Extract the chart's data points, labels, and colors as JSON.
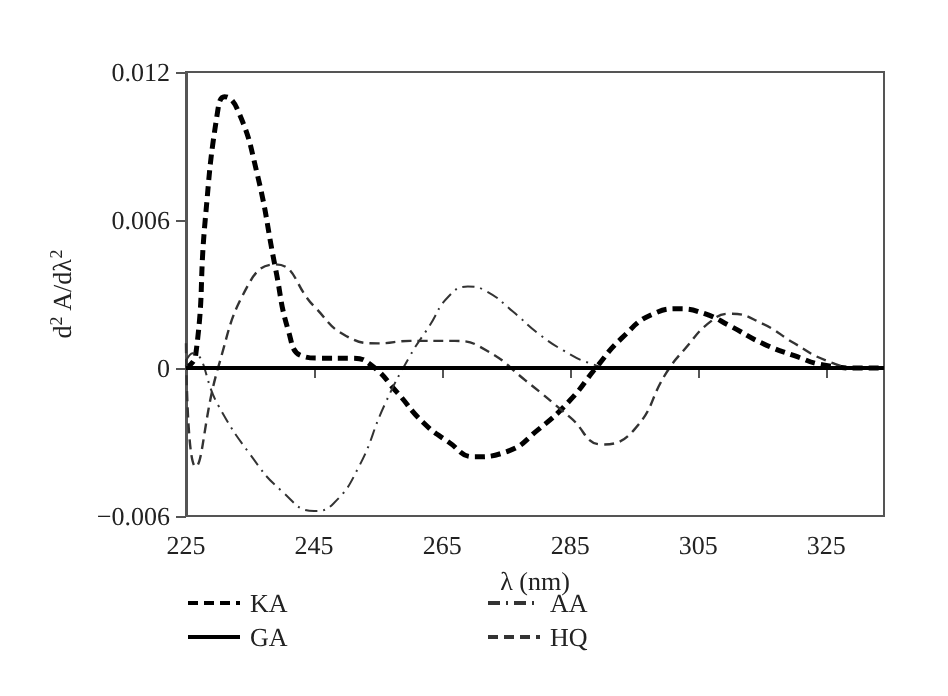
{
  "chart_data": {
    "type": "line",
    "xlabel": "λ (nm)",
    "ylabel": "d$^{2}$ A/dλ$^{2}$",
    "xlim": [
      225,
      334
    ],
    "xticks": [
      225,
      245,
      265,
      285,
      305,
      325
    ],
    "ylim": [
      -0.006,
      0.012
    ],
    "yticks": [
      -0.006,
      0,
      0.006,
      0.012
    ],
    "grid": false,
    "legend": "bottom",
    "marker": "none",
    "series": [
      {
        "name": "KA",
        "color": "#000000",
        "line_style": "dashed",
        "x": [
          225,
          226.5,
          228,
          230,
          231,
          233,
          236,
          239,
          241,
          243,
          246,
          251,
          254,
          258,
          262,
          266,
          270,
          275,
          280,
          285,
          289,
          293,
          298,
          302,
          306,
          310,
          315,
          320,
          325,
          330,
          334
        ],
        "values": [
          0,
          0.0005,
          0.006,
          0.0105,
          0.011,
          0.0105,
          0.008,
          0.004,
          0.0015,
          0.0005,
          0.0004,
          0.0004,
          0.0001,
          -0.001,
          -0.0022,
          -0.003,
          -0.0036,
          -0.0034,
          -0.0025,
          -0.0013,
          0,
          0.0012,
          0.0022,
          0.0024,
          0.0022,
          0.0017,
          0.001,
          0.0005,
          0.0001,
          0,
          0
        ]
      },
      {
        "name": "GA",
        "color": "#000000",
        "line_style": "solid",
        "x": [
          225,
          334
        ],
        "values": [
          0,
          0
        ]
      },
      {
        "name": "AA",
        "color": "#333333",
        "line_style": "dashdot",
        "x": [
          225,
          226,
          230,
          235,
          240,
          245,
          248,
          252,
          256,
          260,
          263,
          266,
          269,
          272,
          276,
          280,
          284,
          288,
          292,
          300,
          310,
          334
        ],
        "values": [
          0.0003,
          0.0006,
          -0.0015,
          -0.0035,
          -0.005,
          -0.0058,
          -0.0055,
          -0.004,
          -0.0015,
          0.0005,
          0.0017,
          0.0029,
          0.0033,
          0.0031,
          0.0023,
          0.0014,
          0.0007,
          0.0002,
          0,
          0,
          0,
          0
        ]
      },
      {
        "name": "HQ",
        "color": "#333333",
        "line_style": "dashed",
        "x": [
          225,
          226.5,
          230,
          235,
          239,
          245,
          250,
          255,
          260,
          267,
          272,
          278,
          285,
          290,
          295,
          300,
          303,
          307,
          310,
          315,
          320,
          325,
          330,
          334
        ],
        "values": [
          0.001,
          -0.004,
          0,
          0.0035,
          0.0042,
          0.0025,
          0.0013,
          0.001,
          0.0011,
          0.0011,
          0.0007,
          -0.0005,
          -0.002,
          -0.0031,
          -0.0025,
          -0.0002,
          0.0008,
          0.0019,
          0.0022,
          0.0018,
          0.001,
          0.0003,
          0,
          0
        ]
      }
    ]
  }
}
